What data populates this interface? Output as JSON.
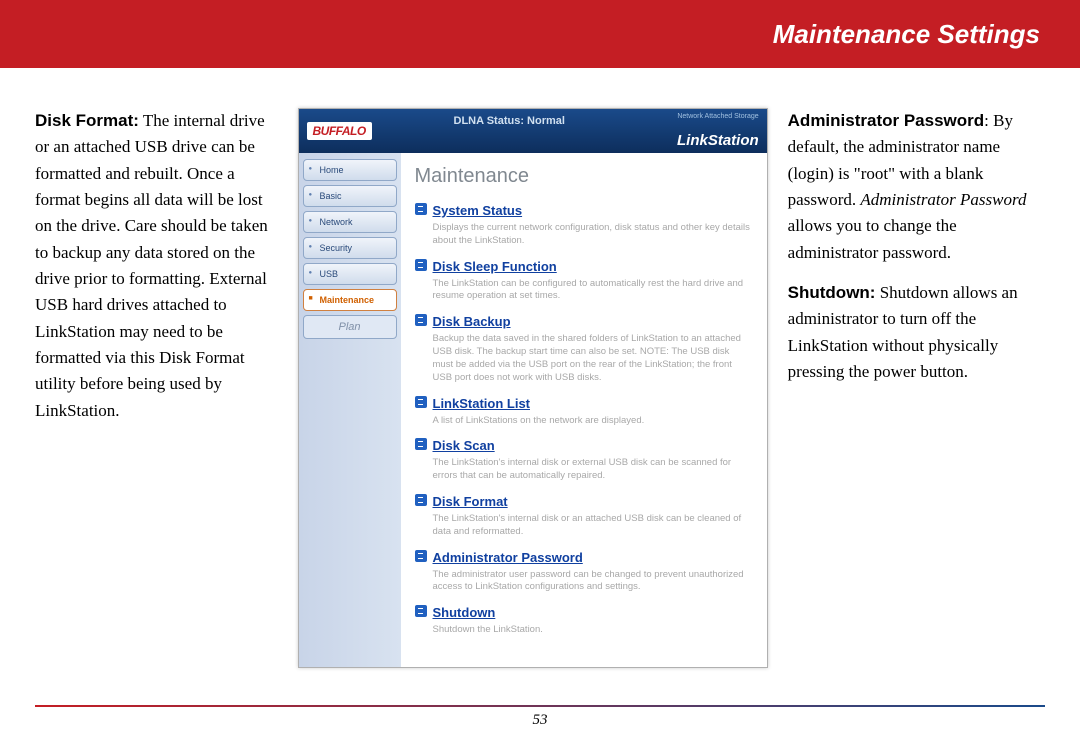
{
  "header": {
    "title": "Maintenance Settings"
  },
  "left": {
    "label": "Disk Format:",
    "body": "  The internal drive or an attached USB drive can be formatted and rebuilt.  Once a format begins all data will be lost on the drive.  Care should be taken to backup any data stored on the drive prior to formatting.  External USB hard drives attached to LinkStation may need to be formatted via this Disk Format utility before being used by LinkStation."
  },
  "screenshot": {
    "logo": "BUFFALO",
    "dlna": "DLNA Status: Normal",
    "nas_tag": "Network Attached Storage",
    "product": "LinkStation",
    "tabs": [
      {
        "label": "Home",
        "active": false
      },
      {
        "label": "Basic",
        "active": false
      },
      {
        "label": "Network",
        "active": false
      },
      {
        "label": "Security",
        "active": false
      },
      {
        "label": "USB",
        "active": false
      },
      {
        "label": "Maintenance",
        "active": true
      },
      {
        "label": "Plan",
        "plain": true
      }
    ],
    "main_title": "Maintenance",
    "items": [
      {
        "title": "System Status",
        "desc": "Displays the current network configuration, disk status and other key details about the LinkStation."
      },
      {
        "title": "Disk Sleep Function",
        "desc": "The LinkStation can be configured to automatically rest the hard drive and resume operation at set times."
      },
      {
        "title": "Disk Backup",
        "desc": "Backup the data saved in the shared folders of LinkStation to an attached USB disk. The backup start time can also be set. NOTE: The USB disk must be added via the USB port on the rear of the LinkStation; the front USB port does not work with USB disks."
      },
      {
        "title": "LinkStation List",
        "desc": "A list of LinkStations on the network are displayed."
      },
      {
        "title": "Disk Scan",
        "desc": "The LinkStation's internal disk or external USB disk can be scanned for errors that can be automatically repaired."
      },
      {
        "title": "Disk Format",
        "desc": "The LinkStation's internal disk or an attached USB disk can be cleaned of data and reformatted."
      },
      {
        "title": "Administrator Password",
        "desc": "The administrator user password can be changed to prevent unauthorized access to LinkStation configurations and settings."
      },
      {
        "title": "Shutdown",
        "desc": "Shutdown the LinkStation."
      }
    ]
  },
  "right": {
    "p1_label": "Administrator Password",
    "p1_a": ":  By default, the administrator name (login) is \"root\" with a blank password.  ",
    "p1_ital": "Administrator Password",
    "p1_b": " allows you to change the administrator password.",
    "p2_label": "Shutdown:",
    "p2_body": "  Shutdown allows an administrator to turn off the LinkStation without physically pressing the power button."
  },
  "page": "53"
}
